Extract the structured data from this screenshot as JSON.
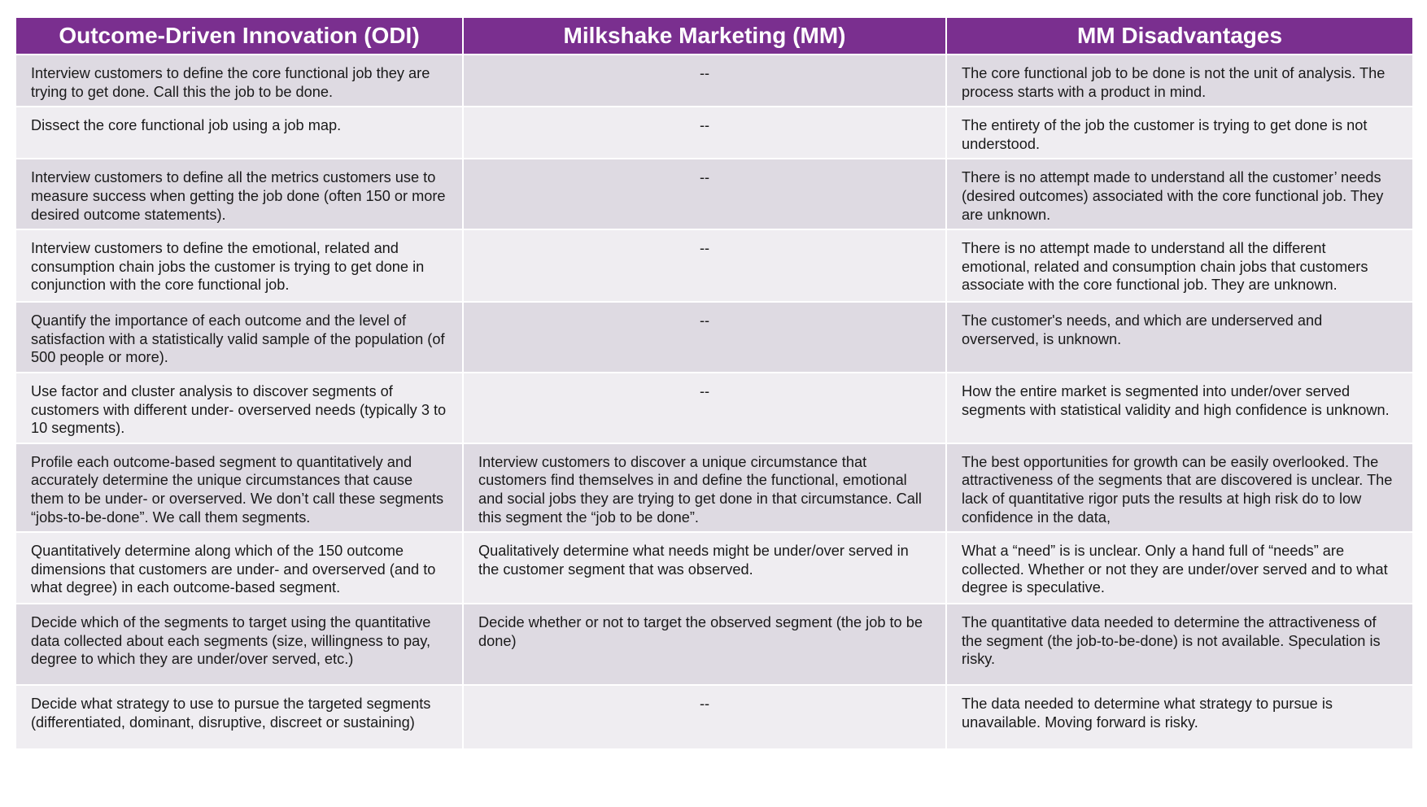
{
  "headers": [
    "Outcome-Driven Innovation (ODI)",
    "Milkshake Marketing (MM)",
    "MM Disadvantages"
  ],
  "rows": [
    {
      "odi": "Interview customers to define the core functional job they are trying to get done. Call this the job to be done.",
      "mm": "--",
      "dis": "The core functional job to be done is not the unit of analysis. The process starts with a product in mind."
    },
    {
      "odi": "Dissect the core functional job using a job map.",
      "mm": "--",
      "dis": "The entirety of the job the customer is trying to get done is not understood."
    },
    {
      "odi": "Interview customers to define all the metrics customers use to measure success when getting the job done (often 150 or more desired outcome statements).",
      "mm": "--",
      "dis": "There is no attempt made to understand all the customer’ needs (desired outcomes) associated with the core functional job. They are unknown."
    },
    {
      "odi": "Interview customers to define the emotional, related and consumption chain jobs the customer is trying to get done in conjunction with the core functional job.",
      "mm": "--",
      "dis": "There is no attempt made to understand all the different emotional, related and consumption chain jobs that customers associate with the core functional job. They are unknown."
    },
    {
      "odi": "Quantify the importance of each outcome and the level of satisfaction with a statistically valid sample of the population (of 500 people or more).",
      "mm": "--",
      "dis": "The customer's needs, and which are underserved and overserved, is unknown."
    },
    {
      "odi": "Use factor and cluster analysis to discover segments of customers with different under- overserved needs (typically 3 to 10 segments).",
      "mm": "--",
      "dis": "How the entire market is segmented into under/over served segments with statistical validity and high confidence is unknown."
    },
    {
      "odi": "Profile each outcome-based segment to quantitatively and accurately determine the unique circumstances that cause them to be under- or overserved. We don’t call these segments “jobs-to-be-done”. We call them segments.",
      "mm": "Interview customers to discover a unique circumstance that customers find themselves in and define the functional, emotional and social jobs they are trying to get done in that circumstance. Call this segment the “job to be done”.",
      "dis": "The best opportunities for growth can be easily overlooked. The attractiveness of the segments that are discovered is unclear. The lack of quantitative rigor puts the results at high risk do to low confidence in the data,"
    },
    {
      "odi": "Quantitatively determine along which of the 150 outcome dimensions that customers are under- and overserved (and to what degree) in each outcome-based segment.",
      "mm": "Qualitatively determine what needs might be under/over served in the customer segment that was observed.",
      "dis": "What a “need” is is unclear. Only a hand full of “needs” are collected. Whether or not they are under/over served and to what degree is speculative."
    },
    {
      "odi": "Decide which of the segments to target using the quantitative data collected about each segments (size, willingness to pay, degree to which they are under/over served, etc.)",
      "mm": "Decide whether or not to target the observed segment (the job to be done)",
      "dis": "The quantitative data needed to determine the attractiveness of the segment (the job-to-be-done) is not available. Speculation is risky."
    },
    {
      "odi": "Decide what strategy to use to pursue the targeted segments (differentiated, dominant, disruptive, discreet or sustaining)",
      "mm": "--",
      "dis": "The data needed to determine what strategy to pursue is unavailable. Moving forward is risky."
    }
  ]
}
